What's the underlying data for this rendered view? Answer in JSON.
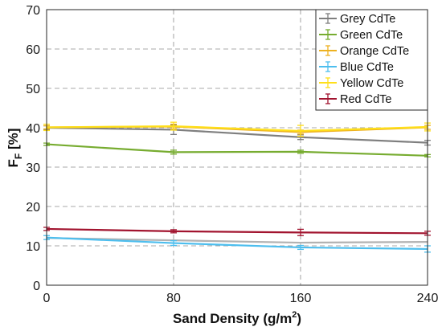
{
  "chart_data": {
    "type": "line",
    "x": [
      0,
      80,
      160,
      240
    ],
    "xlim": [
      0,
      240
    ],
    "ylim": [
      0,
      70
    ],
    "x_ticks": [
      "0",
      "80",
      "160",
      "240"
    ],
    "y_ticks": [
      "0",
      "10",
      "20",
      "30",
      "40",
      "50",
      "60",
      "70"
    ],
    "xlabel": {
      "main": "Sand Density (g/m",
      "sup": "2",
      "end": ")"
    },
    "ylabel": {
      "main": "F",
      "sub": "F",
      "end": " [%]"
    },
    "grid": true,
    "legend_position": "top-right",
    "series": [
      {
        "name": "Grey CdTe",
        "color": "#7f7f7f",
        "values": [
          40.0,
          39.5,
          37.6,
          36.2
        ],
        "errors": [
          0.5,
          1.2,
          0.6,
          0.6
        ]
      },
      {
        "name": "Green CdTe",
        "color": "#77ac30",
        "values": [
          35.8,
          33.8,
          33.9,
          32.9
        ],
        "errors": [
          0.3,
          0.5,
          0.4,
          0.3
        ]
      },
      {
        "name": "Orange CdTe",
        "color": "#edb120",
        "values": [
          40.1,
          40.3,
          38.9,
          40.1
        ],
        "errors": [
          0.4,
          0.6,
          0.5,
          0.5
        ]
      },
      {
        "name": "Blue CdTe",
        "color": "#4dbeee",
        "values": [
          12.1,
          10.7,
          9.6,
          9.2
        ],
        "errors": [
          0.5,
          0.6,
          0.5,
          0.8
        ]
      },
      {
        "name": "Yellow CdTe",
        "color": "#ffdf1a",
        "values": [
          40.1,
          40.4,
          39.2,
          40.2
        ],
        "errors": [
          0.8,
          1.0,
          1.4,
          1.0
        ]
      },
      {
        "name": "Red CdTe",
        "color": "#a2142f",
        "values": [
          14.3,
          13.7,
          13.4,
          13.2
        ],
        "errors": [
          0.4,
          0.4,
          0.8,
          0.5
        ]
      }
    ],
    "extra_series": [
      {
        "color": "#b2b2b2",
        "values": [
          12.0,
          11.4,
          10.8,
          11.0
        ]
      }
    ]
  }
}
